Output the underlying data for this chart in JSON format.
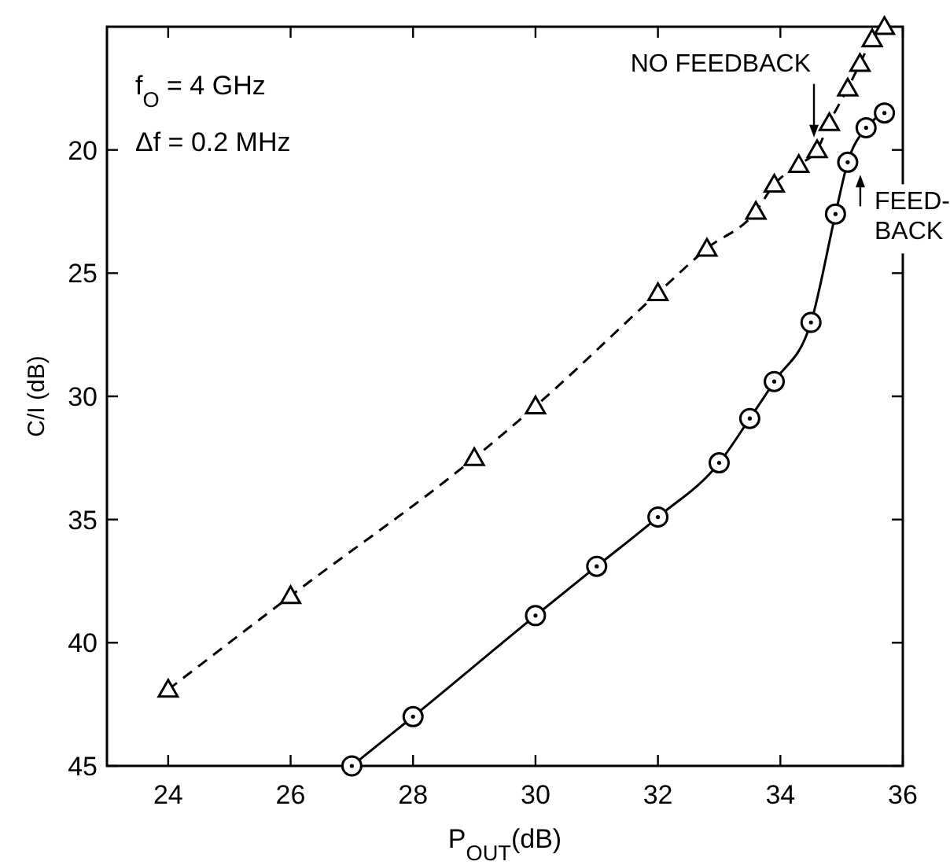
{
  "chart_data": {
    "type": "line",
    "xlabel": "P$_{OUT}$(dB)",
    "ylabel": "C/I (dB)",
    "xlim": [
      23,
      36
    ],
    "xticks": [
      24,
      26,
      28,
      30,
      32,
      34,
      36
    ],
    "ylim": [
      45,
      15
    ],
    "yticks": [
      20,
      25,
      30,
      35,
      40,
      45
    ],
    "grid": false,
    "series": [
      {
        "color": "#000000",
        "marker": "triangle",
        "line_style": "dashed",
        "x": [
          24,
          26,
          29,
          30,
          32,
          32.8,
          33.6,
          33.9,
          34.3,
          34.6,
          34.8,
          35.1,
          35.3,
          35.5,
          35.7
        ],
        "values": [
          41.9,
          38.1,
          32.5,
          30.4,
          25.8,
          24.0,
          22.5,
          21.4,
          20.6,
          20.0,
          18.9,
          17.5,
          16.5,
          15.5,
          15.0
        ]
      },
      {
        "color": "#000000",
        "marker": "circle",
        "line_style": "solid",
        "x": [
          27,
          28,
          30,
          31,
          32,
          33,
          33.5,
          33.9,
          34.5,
          34.9,
          35.1,
          35.4,
          35.7
        ],
        "values": [
          45,
          43.0,
          38.9,
          36.9,
          34.9,
          32.7,
          30.9,
          29.4,
          27.0,
          22.6,
          20.5,
          19.1,
          18.5
        ]
      }
    ],
    "annotations": [
      "f$_{O}$ = 4 GHz",
      "Δf = 0.2 MHz",
      {
        "text": "NO FEEDBACK",
        "x": 34.6,
        "y": 20.0
      },
      {
        "text": "FEED-BACK",
        "x": 35.1,
        "y": 20.5
      }
    ]
  }
}
